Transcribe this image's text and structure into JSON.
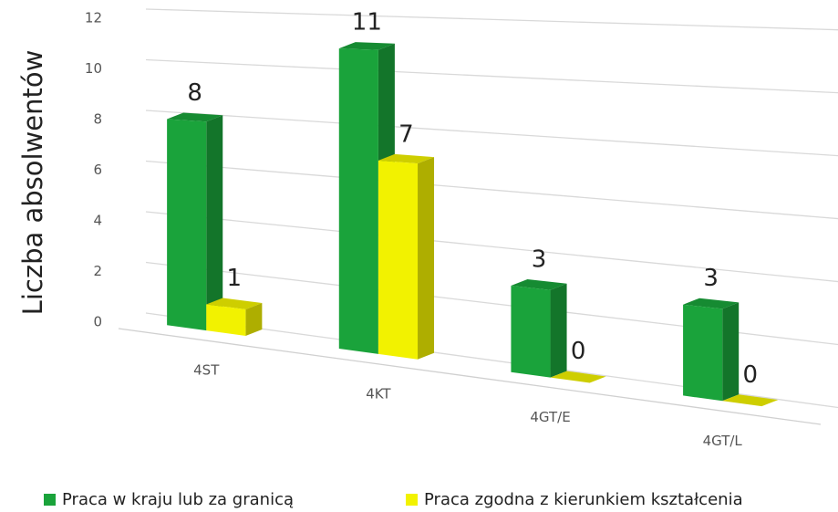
{
  "chart_data": {
    "type": "bar3d",
    "y_label": "Liczba absolwentów",
    "categories": [
      "4ST",
      "4KT",
      "4GT/E",
      "4GT/L"
    ],
    "series": [
      {
        "name": "Praca w kraju lub za granicą",
        "color": "#1aa33b",
        "values": [
          8,
          11,
          3,
          3
        ]
      },
      {
        "name": "Praca zgodna z kierunkiem kształcenia",
        "color": "#f2f200",
        "values": [
          1,
          7,
          0,
          0
        ]
      }
    ],
    "ylim": [
      0,
      12
    ],
    "yticks": [
      0,
      2,
      4,
      6,
      8,
      10,
      12
    ],
    "grid": true,
    "legend": "bottom"
  }
}
